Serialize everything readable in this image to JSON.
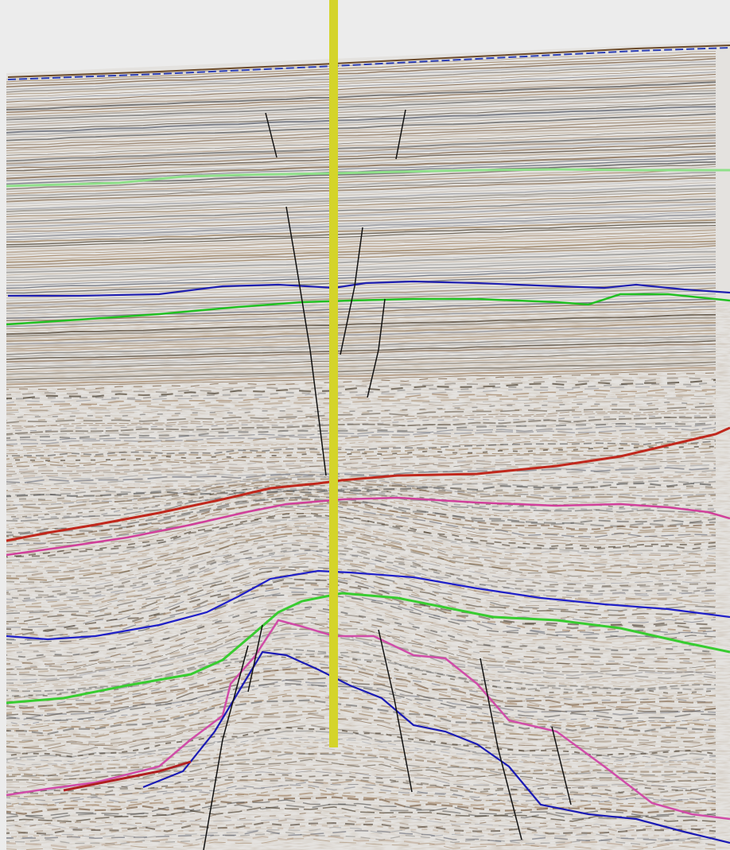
{
  "view": {
    "background": "#ececec",
    "section_fill": "#e4e2df"
  },
  "reflection_palette": [
    "#6b4a2a",
    "#8a6a44",
    "#4a4a4a",
    "#a08060",
    "#5a5f6e",
    "#3d3020"
  ],
  "well": {
    "color": "#d4d42a",
    "icon": "well-path-line"
  },
  "horizons": [
    {
      "id": "seabed",
      "color": "#2b3db3"
    },
    {
      "id": "shallow-green",
      "color": "#8fe08a"
    },
    {
      "id": "upper-blue",
      "color": "#1f1fb0"
    },
    {
      "id": "upper-green",
      "color": "#22c022"
    },
    {
      "id": "mid-red",
      "color": "#c0281c"
    },
    {
      "id": "mid-pink",
      "color": "#d0409a"
    },
    {
      "id": "lower-blue",
      "color": "#1f1fc8"
    },
    {
      "id": "lower-green",
      "color": "#38cc30"
    },
    {
      "id": "deep-pink",
      "color": "#d04ca8"
    },
    {
      "id": "deep-blue",
      "color": "#1a1ab4"
    },
    {
      "id": "deep-red",
      "color": "#b02020"
    }
  ],
  "fault_color": "#111111"
}
